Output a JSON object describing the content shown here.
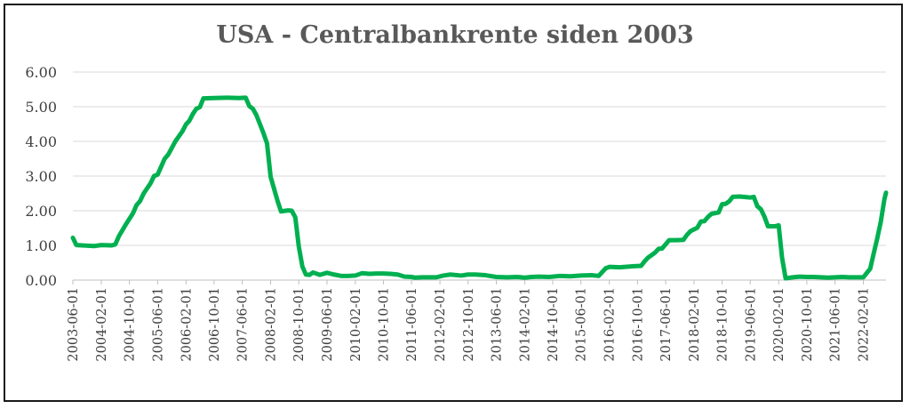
{
  "chart_data": {
    "type": "line",
    "title": "USA - Centralbankrente siden 2003",
    "xlabel": "",
    "ylabel": "",
    "ylim": [
      0,
      6
    ],
    "yticks": [
      "0.00",
      "1.00",
      "2.00",
      "3.00",
      "4.00",
      "5.00",
      "6.00"
    ],
    "xticks": [
      "2003-06-01",
      "2004-02-01",
      "2004-10-01",
      "2005-06-01",
      "2006-02-01",
      "2006-10-01",
      "2007-06-01",
      "2008-02-01",
      "2008-10-01",
      "2009-06-01",
      "2010-02-01",
      "2010-10-01",
      "2011-06-01",
      "2012-02-01",
      "2012-10-01",
      "2013-06-01",
      "2014-02-01",
      "2014-10-01",
      "2015-06-01",
      "2016-02-01",
      "2016-10-01",
      "2017-06-01",
      "2018-02-01",
      "2018-10-01",
      "2019-06-01",
      "2020-02-01",
      "2020-10-01",
      "2021-06-01",
      "2022-02-01"
    ],
    "grid": true,
    "line_color": "#00b050",
    "series": [
      {
        "points": [
          {
            "x": "2003-06-01",
            "y": 1.22
          },
          {
            "x": "2003-07-01",
            "y": 1.01
          },
          {
            "x": "2003-12-01",
            "y": 0.98
          },
          {
            "x": "2004-02-01",
            "y": 1.01
          },
          {
            "x": "2004-05-01",
            "y": 1.0
          },
          {
            "x": "2004-06-01",
            "y": 1.03
          },
          {
            "x": "2004-07-01",
            "y": 1.26
          },
          {
            "x": "2004-09-01",
            "y": 1.61
          },
          {
            "x": "2004-11-01",
            "y": 1.93
          },
          {
            "x": "2004-12-01",
            "y": 2.16
          },
          {
            "x": "2005-01-01",
            "y": 2.28
          },
          {
            "x": "2005-02-01",
            "y": 2.5
          },
          {
            "x": "2005-04-01",
            "y": 2.79
          },
          {
            "x": "2005-05-01",
            "y": 3.0
          },
          {
            "x": "2005-06-01",
            "y": 3.04
          },
          {
            "x": "2005-08-01",
            "y": 3.5
          },
          {
            "x": "2005-09-01",
            "y": 3.62
          },
          {
            "x": "2005-11-01",
            "y": 4.0
          },
          {
            "x": "2006-01-01",
            "y": 4.29
          },
          {
            "x": "2006-02-01",
            "y": 4.49
          },
          {
            "x": "2006-03-01",
            "y": 4.59
          },
          {
            "x": "2006-04-01",
            "y": 4.79
          },
          {
            "x": "2006-05-01",
            "y": 4.94
          },
          {
            "x": "2006-06-01",
            "y": 4.99
          },
          {
            "x": "2006-07-01",
            "y": 5.24
          },
          {
            "x": "2006-10-01",
            "y": 5.25
          },
          {
            "x": "2007-02-01",
            "y": 5.26
          },
          {
            "x": "2007-05-01",
            "y": 5.25
          },
          {
            "x": "2007-07-01",
            "y": 5.26
          },
          {
            "x": "2007-08-01",
            "y": 5.02
          },
          {
            "x": "2007-09-01",
            "y": 4.94
          },
          {
            "x": "2007-10-01",
            "y": 4.76
          },
          {
            "x": "2007-12-01",
            "y": 4.24
          },
          {
            "x": "2008-01-01",
            "y": 3.94
          },
          {
            "x": "2008-02-01",
            "y": 2.98
          },
          {
            "x": "2008-04-01",
            "y": 2.28
          },
          {
            "x": "2008-05-01",
            "y": 1.98
          },
          {
            "x": "2008-07-01",
            "y": 2.01
          },
          {
            "x": "2008-08-01",
            "y": 2.0
          },
          {
            "x": "2008-09-01",
            "y": 1.81
          },
          {
            "x": "2008-10-01",
            "y": 0.97
          },
          {
            "x": "2008-11-01",
            "y": 0.39
          },
          {
            "x": "2008-12-01",
            "y": 0.16
          },
          {
            "x": "2009-01-01",
            "y": 0.15
          },
          {
            "x": "2009-02-01",
            "y": 0.22
          },
          {
            "x": "2009-04-01",
            "y": 0.15
          },
          {
            "x": "2009-06-01",
            "y": 0.21
          },
          {
            "x": "2009-08-01",
            "y": 0.16
          },
          {
            "x": "2009-10-01",
            "y": 0.12
          },
          {
            "x": "2009-12-01",
            "y": 0.12
          },
          {
            "x": "2010-02-01",
            "y": 0.13
          },
          {
            "x": "2010-04-01",
            "y": 0.2
          },
          {
            "x": "2010-06-01",
            "y": 0.18
          },
          {
            "x": "2010-08-01",
            "y": 0.19
          },
          {
            "x": "2010-10-01",
            "y": 0.19
          },
          {
            "x": "2010-12-01",
            "y": 0.18
          },
          {
            "x": "2011-02-01",
            "y": 0.16
          },
          {
            "x": "2011-04-01",
            "y": 0.1
          },
          {
            "x": "2011-06-01",
            "y": 0.09
          },
          {
            "x": "2011-07-01",
            "y": 0.07
          },
          {
            "x": "2011-09-01",
            "y": 0.08
          },
          {
            "x": "2011-11-01",
            "y": 0.08
          },
          {
            "x": "2012-01-01",
            "y": 0.08
          },
          {
            "x": "2012-03-01",
            "y": 0.13
          },
          {
            "x": "2012-05-01",
            "y": 0.16
          },
          {
            "x": "2012-08-01",
            "y": 0.13
          },
          {
            "x": "2012-10-01",
            "y": 0.16
          },
          {
            "x": "2012-12-01",
            "y": 0.16
          },
          {
            "x": "2013-03-01",
            "y": 0.14
          },
          {
            "x": "2013-06-01",
            "y": 0.09
          },
          {
            "x": "2013-09-01",
            "y": 0.08
          },
          {
            "x": "2013-12-01",
            "y": 0.09
          },
          {
            "x": "2014-02-01",
            "y": 0.07
          },
          {
            "x": "2014-04-01",
            "y": 0.09
          },
          {
            "x": "2014-06-01",
            "y": 0.1
          },
          {
            "x": "2014-09-01",
            "y": 0.09
          },
          {
            "x": "2014-12-01",
            "y": 0.12
          },
          {
            "x": "2015-03-01",
            "y": 0.11
          },
          {
            "x": "2015-06-01",
            "y": 0.13
          },
          {
            "x": "2015-09-01",
            "y": 0.14
          },
          {
            "x": "2015-11-01",
            "y": 0.12
          },
          {
            "x": "2016-01-01",
            "y": 0.34
          },
          {
            "x": "2016-02-01",
            "y": 0.38
          },
          {
            "x": "2016-05-01",
            "y": 0.37
          },
          {
            "x": "2016-09-01",
            "y": 0.4
          },
          {
            "x": "2016-11-01",
            "y": 0.41
          },
          {
            "x": "2016-12-01",
            "y": 0.54
          },
          {
            "x": "2017-01-01",
            "y": 0.65
          },
          {
            "x": "2017-03-01",
            "y": 0.79
          },
          {
            "x": "2017-04-01",
            "y": 0.9
          },
          {
            "x": "2017-05-01",
            "y": 0.91
          },
          {
            "x": "2017-07-01",
            "y": 1.15
          },
          {
            "x": "2017-09-01",
            "y": 1.15
          },
          {
            "x": "2017-11-01",
            "y": 1.16
          },
          {
            "x": "2017-12-01",
            "y": 1.3
          },
          {
            "x": "2018-01-01",
            "y": 1.41
          },
          {
            "x": "2018-03-01",
            "y": 1.51
          },
          {
            "x": "2018-04-01",
            "y": 1.69
          },
          {
            "x": "2018-05-01",
            "y": 1.7
          },
          {
            "x": "2018-06-01",
            "y": 1.82
          },
          {
            "x": "2018-07-01",
            "y": 1.91
          },
          {
            "x": "2018-09-01",
            "y": 1.95
          },
          {
            "x": "2018-10-01",
            "y": 2.19
          },
          {
            "x": "2018-11-01",
            "y": 2.2
          },
          {
            "x": "2018-12-01",
            "y": 2.27
          },
          {
            "x": "2019-01-01",
            "y": 2.4
          },
          {
            "x": "2019-03-01",
            "y": 2.41
          },
          {
            "x": "2019-05-01",
            "y": 2.39
          },
          {
            "x": "2019-06-01",
            "y": 2.38
          },
          {
            "x": "2019-07-01",
            "y": 2.4
          },
          {
            "x": "2019-08-01",
            "y": 2.13
          },
          {
            "x": "2019-09-01",
            "y": 2.04
          },
          {
            "x": "2019-10-01",
            "y": 1.83
          },
          {
            "x": "2019-11-01",
            "y": 1.55
          },
          {
            "x": "2020-01-01",
            "y": 1.55
          },
          {
            "x": "2020-02-01",
            "y": 1.58
          },
          {
            "x": "2020-03-01",
            "y": 0.65
          },
          {
            "x": "2020-04-01",
            "y": 0.05
          },
          {
            "x": "2020-06-01",
            "y": 0.08
          },
          {
            "x": "2020-08-01",
            "y": 0.1
          },
          {
            "x": "2020-10-01",
            "y": 0.09
          },
          {
            "x": "2020-12-01",
            "y": 0.09
          },
          {
            "x": "2021-02-01",
            "y": 0.08
          },
          {
            "x": "2021-04-01",
            "y": 0.07
          },
          {
            "x": "2021-06-01",
            "y": 0.08
          },
          {
            "x": "2021-08-01",
            "y": 0.09
          },
          {
            "x": "2021-10-01",
            "y": 0.08
          },
          {
            "x": "2021-12-01",
            "y": 0.08
          },
          {
            "x": "2022-02-01",
            "y": 0.08
          },
          {
            "x": "2022-03-01",
            "y": 0.2
          },
          {
            "x": "2022-04-01",
            "y": 0.33
          },
          {
            "x": "2022-05-01",
            "y": 0.77
          },
          {
            "x": "2022-06-01",
            "y": 1.21
          },
          {
            "x": "2022-07-01",
            "y": 1.68
          },
          {
            "x": "2022-08-01",
            "y": 2.33
          },
          {
            "x": "2022-08-15",
            "y": 2.52
          }
        ]
      }
    ]
  }
}
